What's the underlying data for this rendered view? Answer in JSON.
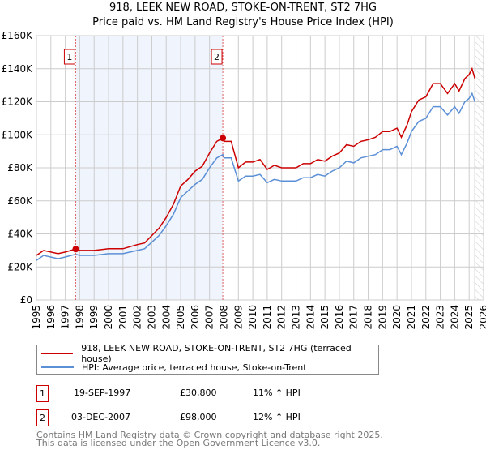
{
  "title_line1": "918, LEEK NEW ROAD, STOKE-ON-TRENT, ST2 7HG",
  "title_line2": "Price paid vs. HM Land Registry's House Price Index (HPI)",
  "chart_data": {
    "type": "line",
    "title": "918, LEEK NEW ROAD, STOKE-ON-TRENT, ST2 7HG — Price paid vs. HM Land Registry's House Price Index (HPI)",
    "xlabel": "",
    "ylabel": "",
    "xlim": [
      1995,
      2026
    ],
    "ylim": [
      0,
      160
    ],
    "value_unit": "£K",
    "grid": true,
    "legend_placement": "below",
    "x_ticks": [
      "1995",
      "1996",
      "1997",
      "1998",
      "1999",
      "2000",
      "2001",
      "2002",
      "2003",
      "2004",
      "2005",
      "2006",
      "2007",
      "2008",
      "2009",
      "2010",
      "2011",
      "2012",
      "2013",
      "2014",
      "2015",
      "2016",
      "2017",
      "2018",
      "2019",
      "2020",
      "2021",
      "2022",
      "2023",
      "2024",
      "2025",
      "2026"
    ],
    "y_ticks": [
      {
        "v": 0,
        "label": "£0"
      },
      {
        "v": 20,
        "label": "£20K"
      },
      {
        "v": 40,
        "label": "£40K"
      },
      {
        "v": 60,
        "label": "£60K"
      },
      {
        "v": 80,
        "label": "£80K"
      },
      {
        "v": 100,
        "label": "£100K"
      },
      {
        "v": 120,
        "label": "£120K"
      },
      {
        "v": 140,
        "label": "£140K"
      },
      {
        "v": 160,
        "label": "£160K"
      }
    ],
    "x": [
      1995,
      1995.5,
      1996.5,
      1997,
      1997.72,
      1998,
      1999,
      2000,
      2001,
      2002,
      2002.5,
      2003,
      2003.5,
      2004,
      2004.5,
      2005,
      2005.5,
      2006,
      2006.5,
      2007,
      2007.5,
      2007.92,
      2008,
      2008.5,
      2009,
      2009.5,
      2010,
      2010.5,
      2011,
      2011.5,
      2012,
      2013,
      2013.5,
      2014,
      2014.5,
      2015,
      2015.5,
      2016,
      2016.5,
      2017,
      2017.5,
      2018,
      2018.5,
      2019,
      2019.5,
      2020,
      2020.3,
      2020.7,
      2021,
      2021.5,
      2022,
      2022.5,
      2023,
      2023.5,
      2024,
      2024.3,
      2024.7,
      2025,
      2025.2,
      2025.4
    ],
    "series": [
      {
        "name": "918, LEEK NEW ROAD, STOKE-ON-TRENT, ST2 7HG (terraced house)",
        "color": "#cc0000",
        "values": [
          27,
          30,
          28,
          29,
          30.8,
          30,
          30,
          31,
          31,
          33.5,
          34.5,
          39,
          43.5,
          50,
          58,
          69,
          73,
          78,
          81,
          89,
          96,
          98,
          96,
          96,
          80,
          83.5,
          83.5,
          85,
          79,
          81.5,
          80,
          80,
          82.5,
          82.5,
          85,
          84,
          87,
          89,
          94,
          93,
          96,
          97,
          98.5,
          102,
          102,
          104,
          98.5,
          106,
          114,
          121,
          123,
          131,
          131,
          125,
          131,
          126.5,
          134,
          136.5,
          140,
          134
        ]
      },
      {
        "name": "HPI: Average price, terraced house, Stoke-on-Trent",
        "color": "#5b8fd6",
        "values": [
          24,
          27,
          25,
          26,
          27.7,
          27,
          27,
          28,
          28,
          30,
          31,
          35,
          39,
          45,
          52,
          62,
          66,
          70,
          73,
          80,
          86,
          88,
          86,
          86,
          72,
          75,
          75,
          76,
          71,
          73,
          72,
          72,
          74,
          74,
          76,
          75,
          78,
          80,
          84,
          83,
          86,
          87,
          88,
          91,
          91,
          93,
          88,
          95,
          102,
          108,
          110,
          117,
          117,
          112,
          117,
          113,
          120,
          122,
          125,
          120
        ]
      }
    ],
    "shaded_range": [
      1997.72,
      2007.92
    ],
    "forecast_hatch_from": 2025.4,
    "sales": [
      {
        "label": "1",
        "x": 1997.72,
        "value": 30.8
      },
      {
        "label": "2",
        "x": 2007.92,
        "value": 98
      }
    ]
  },
  "legend": {
    "red_label": "918, LEEK NEW ROAD, STOKE-ON-TRENT, ST2 7HG (terraced house)",
    "blue_label": "HPI: Average price, terraced house, Stoke-on-Trent"
  },
  "sales_table": [
    {
      "num": "1",
      "date": "19-SEP-1997",
      "price": "£30,800",
      "delta": "11% ↑ HPI"
    },
    {
      "num": "2",
      "date": "03-DEC-2007",
      "price": "£98,000",
      "delta": "12% ↑ HPI"
    }
  ],
  "footer_line1": "Contains HM Land Registry data © Crown copyright and database right 2025.",
  "footer_line2": "This data is licensed under the Open Government Licence v3.0."
}
